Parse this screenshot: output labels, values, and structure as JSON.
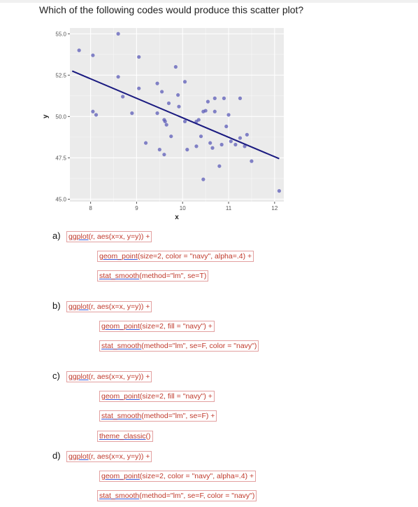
{
  "question": "Which of the following codes would produce this scatter plot?",
  "chart_data": {
    "type": "scatter",
    "title": "",
    "xlabel": "x",
    "ylabel": "y",
    "xlim": [
      7.55,
      12.2
    ],
    "ylim": [
      44.85,
      55.35
    ],
    "x_ticks": [
      8,
      9,
      10,
      11,
      12
    ],
    "x_tick_labels": [
      "8",
      "9",
      "10",
      "11",
      "12"
    ],
    "y_ticks": [
      45.0,
      47.5,
      50.0,
      52.5,
      55.0
    ],
    "y_tick_labels": [
      "45.0",
      "47.5",
      "50.0",
      "52.5",
      "55.0"
    ],
    "grid": true,
    "point_color": "#5c5cb8",
    "line_color": "#1a1a80",
    "background": "#ebebeb",
    "points": [
      {
        "x": 7.75,
        "y": 54.0
      },
      {
        "x": 8.05,
        "y": 53.7
      },
      {
        "x": 8.6,
        "y": 55.0
      },
      {
        "x": 8.05,
        "y": 50.3
      },
      {
        "x": 8.12,
        "y": 50.1
      },
      {
        "x": 8.6,
        "y": 52.4
      },
      {
        "x": 8.7,
        "y": 51.2
      },
      {
        "x": 8.9,
        "y": 50.2
      },
      {
        "x": 9.05,
        "y": 53.6
      },
      {
        "x": 9.05,
        "y": 51.7
      },
      {
        "x": 9.2,
        "y": 48.4
      },
      {
        "x": 9.45,
        "y": 52.0
      },
      {
        "x": 9.45,
        "y": 50.2
      },
      {
        "x": 9.55,
        "y": 51.5
      },
      {
        "x": 9.6,
        "y": 49.8
      },
      {
        "x": 9.62,
        "y": 49.7
      },
      {
        "x": 9.65,
        "y": 49.5
      },
      {
        "x": 9.5,
        "y": 48.0
      },
      {
        "x": 9.7,
        "y": 50.8
      },
      {
        "x": 9.75,
        "y": 48.8
      },
      {
        "x": 9.6,
        "y": 47.7
      },
      {
        "x": 9.85,
        "y": 53.0
      },
      {
        "x": 9.9,
        "y": 51.3
      },
      {
        "x": 9.92,
        "y": 50.6
      },
      {
        "x": 10.05,
        "y": 52.1
      },
      {
        "x": 10.05,
        "y": 49.7
      },
      {
        "x": 10.1,
        "y": 48.0
      },
      {
        "x": 10.3,
        "y": 49.7
      },
      {
        "x": 10.35,
        "y": 49.8
      },
      {
        "x": 10.3,
        "y": 48.2
      },
      {
        "x": 10.4,
        "y": 48.8
      },
      {
        "x": 10.45,
        "y": 50.3
      },
      {
        "x": 10.5,
        "y": 50.35
      },
      {
        "x": 10.45,
        "y": 46.2
      },
      {
        "x": 10.55,
        "y": 50.9
      },
      {
        "x": 10.6,
        "y": 48.4
      },
      {
        "x": 10.65,
        "y": 48.1
      },
      {
        "x": 10.7,
        "y": 51.1
      },
      {
        "x": 10.7,
        "y": 50.3
      },
      {
        "x": 10.8,
        "y": 47.0
      },
      {
        "x": 10.85,
        "y": 48.3
      },
      {
        "x": 10.9,
        "y": 51.1
      },
      {
        "x": 10.95,
        "y": 49.4
      },
      {
        "x": 11.0,
        "y": 50.1
      },
      {
        "x": 11.05,
        "y": 48.5
      },
      {
        "x": 11.15,
        "y": 48.3
      },
      {
        "x": 11.25,
        "y": 51.1
      },
      {
        "x": 11.25,
        "y": 48.7
      },
      {
        "x": 11.35,
        "y": 48.2
      },
      {
        "x": 11.4,
        "y": 48.9
      },
      {
        "x": 11.5,
        "y": 47.3
      },
      {
        "x": 12.1,
        "y": 45.5
      }
    ],
    "regression_line": {
      "x": [
        7.6,
        12.1
      ],
      "y": [
        52.75,
        47.45
      ]
    }
  },
  "options": [
    {
      "letter": "a)",
      "lines": [
        {
          "fn": "ggplot",
          "rest": "(r, aes(x=x, y=y)) +"
        },
        {
          "fn": "geom_point",
          "rest": "(size=2, color = \"navy\", alpha=.4) +"
        },
        {
          "fn": "stat_smooth",
          "rest": "(method=\"lm\", se=T)"
        }
      ]
    },
    {
      "letter": "b)",
      "lines": [
        {
          "fn": "ggplot",
          "rest": "(r, aes(x=x, y=y)) +"
        },
        {
          "fn": "geom_point",
          "rest": "(size=2, fill = \"navy\") +"
        },
        {
          "fn": "stat_smooth",
          "rest": "(method=\"lm\", se=F, color = \"navy\")"
        }
      ]
    },
    {
      "letter": "c)",
      "lines": [
        {
          "fn": "ggplot",
          "rest": "(r, aes(x=x, y=y)) +"
        },
        {
          "fn": "geom_point",
          "rest": "(size=2, fill = \"navy\") +"
        },
        {
          "fn": "stat_smooth",
          "rest": "(method=\"lm\", se=F) +"
        },
        {
          "fn": "theme_classic",
          "rest": "()"
        }
      ]
    },
    {
      "letter": "d)",
      "lines": [
        {
          "fn": "ggplot",
          "rest": "(r, aes(x=x, y=y)) +"
        },
        {
          "fn": "geom_point",
          "rest": "(size=2, color = \"navy\", alpha=.4) +"
        },
        {
          "fn": "stat_smooth",
          "rest": "(method=\"lm\", se=F, color = \"navy\")"
        }
      ]
    }
  ]
}
